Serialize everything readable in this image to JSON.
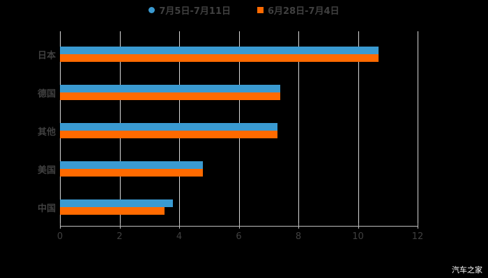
{
  "chart_data": {
    "type": "bar",
    "orientation": "horizontal",
    "title": "",
    "categories": [
      "日本",
      "德国",
      "其他",
      "美国",
      "中国"
    ],
    "series": [
      {
        "name": "7月5日-7月11日",
        "color": "#3a9ad1",
        "values": [
          10.7,
          7.4,
          7.3,
          4.8,
          3.8
        ]
      },
      {
        "name": "6月28日-7月4日",
        "color": "#ff6a00",
        "values": [
          10.7,
          7.4,
          7.3,
          4.8,
          3.5
        ]
      }
    ],
    "xlabel": "",
    "ylabel": "",
    "xlim": [
      0,
      12
    ],
    "xticks": [
      "0",
      "2",
      "4",
      "6",
      "8",
      "10",
      "12"
    ],
    "grid": true,
    "legend_position": "top"
  },
  "legend": {
    "series1": "7月5日-7月11日",
    "series2": "6月28日-7月4日"
  },
  "watermark": "汽车之家"
}
